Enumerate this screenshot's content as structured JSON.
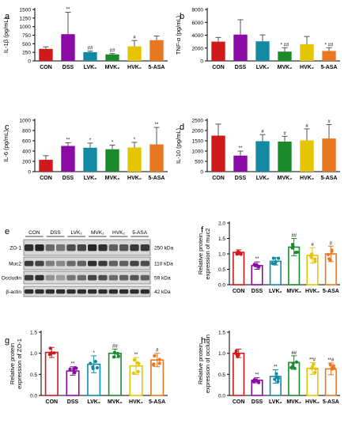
{
  "colors": {
    "CON": "#d0191b",
    "DSS": "#8a0aa6",
    "LVK2": "#138aa4",
    "MVK2": "#1a8a2c",
    "HVK2": "#e5c400",
    "5-ASA": "#e87722"
  },
  "groups": [
    "CON",
    "DSS",
    "LVK₂",
    "MVK₂",
    "HVK₂",
    "5-ASA"
  ],
  "chart_data": [
    {
      "panel": "a",
      "type": "bar",
      "ylabel": "IL-1β (pg/mL)",
      "ylim": [
        0,
        1500
      ],
      "yticks": [
        0,
        250,
        500,
        750,
        1000,
        1250,
        1500
      ],
      "fill": "solid",
      "values": [
        350,
        780,
        255,
        190,
        425,
        605
      ],
      "errors": [
        60,
        640,
        30,
        25,
        170,
        120
      ],
      "marks": [
        "",
        "**",
        "##",
        "##",
        "#",
        ""
      ]
    },
    {
      "panel": "b",
      "type": "bar",
      "ylabel": "TNF-α (pg/mL)",
      "ylim": [
        0,
        8000
      ],
      "yticks": [
        0,
        2000,
        4000,
        6000,
        8000
      ],
      "fill": "solid",
      "values": [
        3000,
        4100,
        3050,
        1450,
        2600,
        1550
      ],
      "errors": [
        650,
        2300,
        1000,
        600,
        1200,
        500
      ],
      "marks": [
        "",
        "",
        "",
        "* ##",
        "",
        "* ##"
      ]
    },
    {
      "panel": "c",
      "type": "bar",
      "ylabel": "IL-6 (pg/mL)",
      "ylim": [
        0,
        1000
      ],
      "yticks": [
        0,
        200,
        400,
        600,
        800,
        1000
      ],
      "fill": "solid",
      "values": [
        230,
        500,
        465,
        435,
        470,
        530
      ],
      "errors": [
        80,
        60,
        90,
        80,
        100,
        330
      ],
      "marks": [
        "",
        "**",
        "*",
        "*",
        "*",
        "**"
      ]
    },
    {
      "panel": "d",
      "type": "bar",
      "ylabel": "IL-10 (pg/mL)",
      "ylim": [
        0,
        2500
      ],
      "yticks": [
        0,
        500,
        1000,
        1500,
        2000,
        2500
      ],
      "fill": "solid",
      "values": [
        1750,
        780,
        1480,
        1460,
        1520,
        1610
      ],
      "errors": [
        560,
        220,
        320,
        260,
        560,
        680
      ],
      "marks": [
        "",
        "**",
        "#",
        "#",
        "#",
        "#"
      ]
    },
    {
      "panel": "f",
      "type": "bar",
      "ylabel": "Relative protein expression of muc2",
      "ylim": [
        0,
        2.0
      ],
      "yticks": [
        0.0,
        0.5,
        1.0,
        1.5,
        2.0
      ],
      "fill": "open",
      "values": [
        1.05,
        0.62,
        0.76,
        1.22,
        0.95,
        1.0
      ],
      "errors": [
        0.08,
        0.12,
        0.12,
        0.28,
        0.25,
        0.25
      ],
      "marks": [
        "",
        "**",
        "",
        "##",
        "#",
        "#"
      ]
    },
    {
      "panel": "g",
      "type": "bar",
      "ylabel": "Relative protein expression of ZO-1",
      "ylim": [
        0,
        1.5
      ],
      "yticks": [
        0.0,
        0.5,
        1.0,
        1.5
      ],
      "fill": "open",
      "values": [
        1.02,
        0.58,
        0.74,
        1.0,
        0.7,
        0.84
      ],
      "errors": [
        0.12,
        0.1,
        0.2,
        0.1,
        0.2,
        0.16
      ],
      "marks": [
        "",
        "**",
        "*",
        "##",
        "**",
        "#"
      ]
    },
    {
      "panel": "h",
      "type": "bar",
      "ylabel": "Relative protein expression of occludin",
      "ylim": [
        0,
        1.5
      ],
      "yticks": [
        0.0,
        0.5,
        1.0,
        1.5
      ],
      "fill": "open",
      "values": [
        1.0,
        0.36,
        0.45,
        0.78,
        0.64,
        0.63
      ],
      "errors": [
        0.1,
        0.06,
        0.16,
        0.16,
        0.14,
        0.14
      ],
      "marks": [
        "",
        "**",
        "**",
        "##",
        "**#",
        "**#"
      ]
    }
  ],
  "western_blot": {
    "panel": "e",
    "columns": [
      "CON",
      "DSS",
      "LVK₂",
      "MVK₂",
      "HVK₂",
      "5-ASA"
    ],
    "rows": [
      {
        "protein": "ZO-1",
        "size": "250 kDa"
      },
      {
        "protein": "Muc2",
        "size": "110 kDa"
      },
      {
        "protein": "Occludin",
        "size": "59 kDa"
      },
      {
        "protein": "β-actin",
        "size": "42 kDa"
      }
    ]
  }
}
